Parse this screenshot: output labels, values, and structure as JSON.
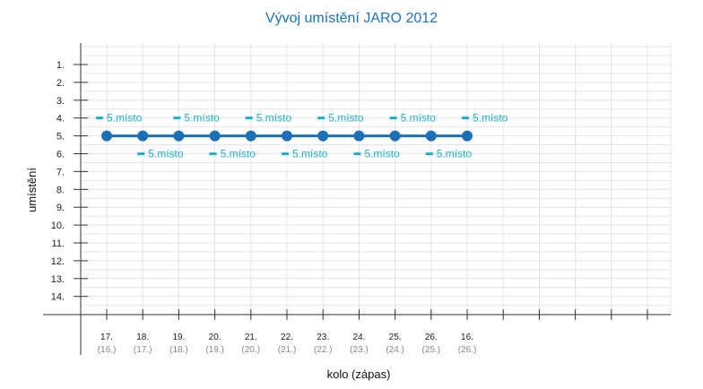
{
  "chart_data": {
    "type": "line",
    "title": "Vývoj umístění JARO 2012",
    "xlabel": "kolo (zápas)",
    "ylabel": "umístění",
    "y_axis_reversed": true,
    "ylim": [
      1,
      14
    ],
    "y_ticks": [
      "1.",
      "2.",
      "3.",
      "4.",
      "5.",
      "6.",
      "7.",
      "8.",
      "9.",
      "10.",
      "11.",
      "12.",
      "13.",
      "14."
    ],
    "categories": [
      "17.",
      "18.",
      "19.",
      "20.",
      "21.",
      "22.",
      "23.",
      "24.",
      "25.",
      "26.",
      "16."
    ],
    "categories_sub": [
      "(16.)",
      "(17.)",
      "(18.)",
      "(19.)",
      "(20.)",
      "(21.)",
      "(22.)",
      "(23.)",
      "(24.)",
      "(25.)",
      "(26.)"
    ],
    "series": [
      {
        "values": [
          5,
          5,
          5,
          5,
          5,
          5,
          5,
          5,
          5,
          5,
          5
        ],
        "point_labels": [
          "5.místo",
          "5.místo",
          "5.místo",
          "5.místo",
          "5.místo",
          "5.místo",
          "5.místo",
          "5.místo",
          "5.místo",
          "5.místo",
          "5.místo"
        ]
      }
    ],
    "grid": true,
    "colors": {
      "line": "#1a6fb5",
      "label": "#1ab0d0",
      "title": "#1a73b9",
      "grid": "#e4e4e4",
      "axis": "#333333"
    }
  }
}
